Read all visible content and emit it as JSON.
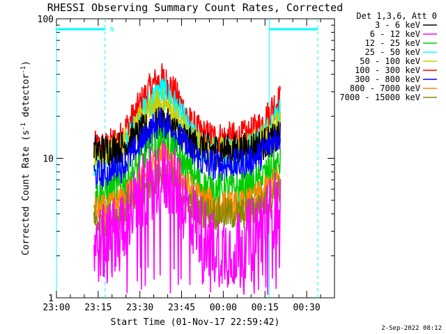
{
  "chart_data": {
    "type": "line",
    "title": "RHESSI Observing Summary Count Rates, Corrected",
    "xlabel": "Start Time (01-Nov-17 22:59:42)",
    "ylabel": "Corrected Count Rate (s",
    "ylabel_sup1": "-1",
    "ylabel_mid": " detector",
    "ylabel_sup2": "-1",
    "ylabel_end": ")",
    "yscale": "log",
    "ylim": [
      1,
      100
    ],
    "xlim_min": [
      0,
      100
    ],
    "x_tick_labels": [
      "23:00",
      "23:15",
      "23:30",
      "23:45",
      "00:00",
      "00:15",
      "00:30"
    ],
    "x_tick_min": [
      0,
      15,
      30,
      45,
      60,
      75,
      90
    ],
    "y_tick_labels": [
      "1",
      "10",
      "100"
    ],
    "y_tick_values": [
      1,
      10,
      100
    ],
    "legend_header": "Det 1,3,6, Att 0",
    "legend": [
      {
        "label": "3 - 6 keV",
        "color": "#000000"
      },
      {
        "label": "6 - 12 keV",
        "color": "#ff00ff"
      },
      {
        "label": "12 - 25 keV",
        "color": "#00cc00"
      },
      {
        "label": "25 - 50 keV",
        "color": "#00ffff"
      },
      {
        "label": "50 - 100 keV",
        "color": "#cccc00"
      },
      {
        "label": "100 - 300 keV",
        "color": "#ff0000"
      },
      {
        "label": "300 - 800 keV",
        "color": "#0000ff"
      },
      {
        "label": "800 - 7000 keV",
        "color": "#ff8800"
      },
      {
        "label": "7000 - 15000 keV",
        "color": "#888800"
      }
    ],
    "night_marker_label": "N",
    "night_intervals_min": [
      [
        0,
        17.5
      ],
      [
        76.5,
        94
      ]
    ],
    "saa_lines_min": [
      0,
      17.5,
      76.5,
      94
    ],
    "data_window_min": [
      13.5,
      80.5
    ],
    "series": [
      {
        "name": "100 - 300 keV",
        "color": "#ff0000",
        "x": [
          13.5,
          18,
          23,
          28,
          32,
          35,
          38,
          41,
          44,
          48,
          52,
          57,
          62,
          66,
          70,
          73,
          76,
          78,
          80
        ],
        "y": [
          12,
          12,
          14,
          20,
          28,
          34,
          37,
          33,
          26,
          18,
          15,
          14,
          14,
          14,
          15,
          17,
          20,
          24,
          26
        ]
      },
      {
        "name": "25 - 50 keV",
        "color": "#00ffff",
        "x": [
          13.5,
          18,
          23,
          28,
          32,
          35,
          38,
          41,
          44,
          48,
          52,
          57,
          62,
          66,
          70,
          73,
          76,
          78,
          80
        ],
        "y": [
          9.5,
          9.5,
          11,
          16,
          22,
          27,
          30,
          27,
          21,
          15,
          12,
          11,
          11,
          11,
          12,
          13.5,
          16,
          19,
          21
        ]
      },
      {
        "name": "50 - 100 keV",
        "color": "#cccc00",
        "x": [
          13.5,
          18,
          23,
          28,
          32,
          35,
          38,
          41,
          44,
          48,
          52,
          57,
          62,
          66,
          70,
          73,
          76,
          78,
          80
        ],
        "y": [
          10.5,
          10.5,
          12,
          16,
          20,
          23,
          25,
          22,
          18,
          14,
          12,
          11,
          11,
          11,
          12,
          13,
          15,
          16.5,
          17
        ]
      },
      {
        "name": "3 - 6 keV",
        "color": "#000000",
        "x": [
          13.5,
          18,
          23,
          28,
          32,
          35,
          38,
          41,
          44,
          48,
          52,
          57,
          62,
          66,
          70,
          73,
          76,
          78,
          80
        ],
        "y": [
          11.5,
          11.5,
          12,
          14,
          16,
          17.5,
          18,
          17,
          15,
          13,
          12,
          11.5,
          11.5,
          11.5,
          12,
          12.5,
          13,
          13.5,
          14
        ]
      },
      {
        "name": "300 - 800 keV",
        "color": "#0000ff",
        "x": [
          13.5,
          18,
          23,
          28,
          32,
          35,
          38,
          41,
          44,
          48,
          52,
          57,
          62,
          66,
          70,
          73,
          76,
          78,
          80
        ],
        "y": [
          7.5,
          7.5,
          8.5,
          11,
          14,
          16.5,
          18,
          16.5,
          14,
          11,
          9.5,
          9,
          9,
          9,
          9.5,
          10.5,
          12,
          13.5,
          14.5
        ]
      },
      {
        "name": "12 - 25 keV",
        "color": "#00cc00",
        "x": [
          13.5,
          18,
          23,
          28,
          32,
          35,
          38,
          41,
          44,
          48,
          52,
          57,
          62,
          66,
          70,
          73,
          76,
          78,
          80
        ],
        "y": [
          5.5,
          5.5,
          6.2,
          8,
          10,
          12,
          13,
          12,
          10,
          8,
          6.5,
          6,
          6,
          6,
          6.3,
          7,
          8,
          8.7,
          9
        ]
      },
      {
        "name": "800 - 7000 keV",
        "color": "#ff8800",
        "x": [
          13.5,
          18,
          23,
          28,
          32,
          35,
          38,
          41,
          44,
          48,
          52,
          57,
          62,
          66,
          70,
          73,
          76,
          78,
          80
        ],
        "y": [
          4.2,
          4.2,
          4.8,
          6,
          7.5,
          9,
          10,
          9,
          7.5,
          6,
          5,
          4.6,
          4.5,
          4.5,
          4.8,
          5.3,
          6,
          6.5,
          7
        ]
      },
      {
        "name": "7000 - 15000 keV",
        "color": "#888800",
        "x": [
          13.5,
          18,
          23,
          28,
          32,
          35,
          38,
          41,
          44,
          48,
          52,
          57,
          62,
          66,
          70,
          73,
          76,
          78,
          80
        ],
        "y": [
          3.6,
          3.6,
          4,
          5,
          6,
          7,
          7.5,
          7,
          6,
          5,
          4.2,
          4,
          4,
          4,
          4.2,
          4.6,
          5,
          5.5,
          5.8
        ]
      },
      {
        "name": "6 - 12 keV",
        "color": "#ff00ff",
        "x": [
          13.5,
          18,
          23,
          28,
          32,
          35,
          38,
          41,
          44,
          48,
          52,
          57,
          62,
          66,
          70,
          73,
          76,
          78,
          80
        ],
        "y": [
          2.3,
          2.5,
          3.2,
          4.5,
          6,
          7,
          7.5,
          7,
          5.5,
          4,
          3,
          2.3,
          2.2,
          2.4,
          2.8,
          3.2,
          3.8,
          4.2,
          4.5
        ]
      }
    ]
  },
  "footer_date": "2-Sep-2022 08:12"
}
